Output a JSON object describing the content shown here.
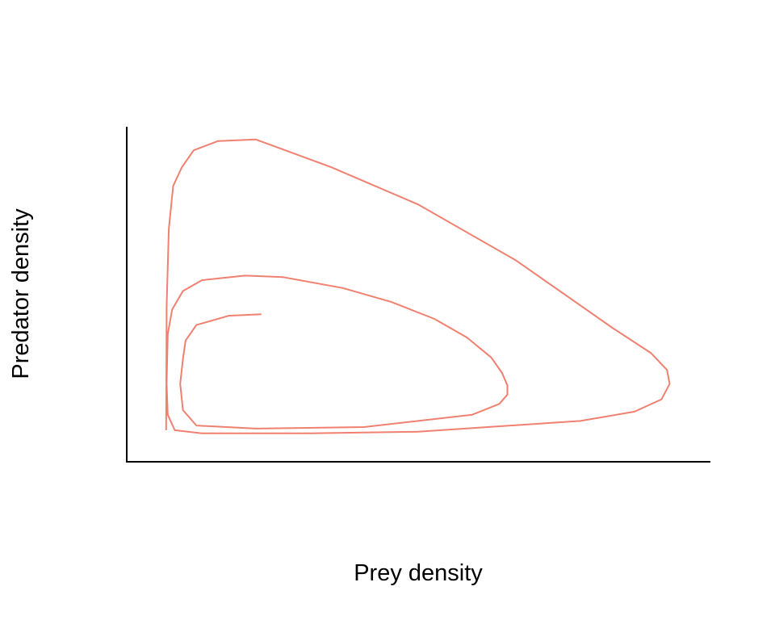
{
  "chart_data": {
    "type": "line",
    "title": "",
    "xlabel": "Prey density",
    "ylabel": "Predator density",
    "xlim": [
      0,
      1
    ],
    "ylim": [
      0,
      1
    ],
    "x_ticks_shown": false,
    "y_ticks_shown": false,
    "grid": false,
    "legend": "none",
    "line_color": "#F08070",
    "series": [
      {
        "x": [
          0.21,
          0.15,
          0.09,
          0.07,
          0.065,
          0.06,
          0.065,
          0.09,
          0.2,
          0.4,
          0.6,
          0.65,
          0.665,
          0.665,
          0.655,
          0.635,
          0.59,
          0.53,
          0.45,
          0.36,
          0.25,
          0.18,
          0.1,
          0.065,
          0.045,
          0.037,
          0.035,
          0.037,
          0.05,
          0.1,
          0.3,
          0.5,
          0.8,
          0.9,
          0.95,
          0.965,
          0.96,
          0.93,
          0.86,
          0.68,
          0.5,
          0.34,
          0.2,
          0.13,
          0.085,
          0.063,
          0.047,
          0.039,
          0.035,
          0.034
        ],
        "y": [
          0.425,
          0.42,
          0.39,
          0.34,
          0.28,
          0.2,
          0.115,
          0.065,
          0.055,
          0.06,
          0.1,
          0.135,
          0.165,
          0.195,
          0.235,
          0.285,
          0.35,
          0.41,
          0.465,
          0.51,
          0.545,
          0.55,
          0.535,
          0.5,
          0.44,
          0.36,
          0.2,
          0.1,
          0.05,
          0.04,
          0.04,
          0.045,
          0.08,
          0.11,
          0.15,
          0.2,
          0.245,
          0.3,
          0.38,
          0.6,
          0.78,
          0.9,
          0.99,
          0.985,
          0.955,
          0.9,
          0.84,
          0.7,
          0.45,
          0.05
        ]
      }
    ]
  }
}
